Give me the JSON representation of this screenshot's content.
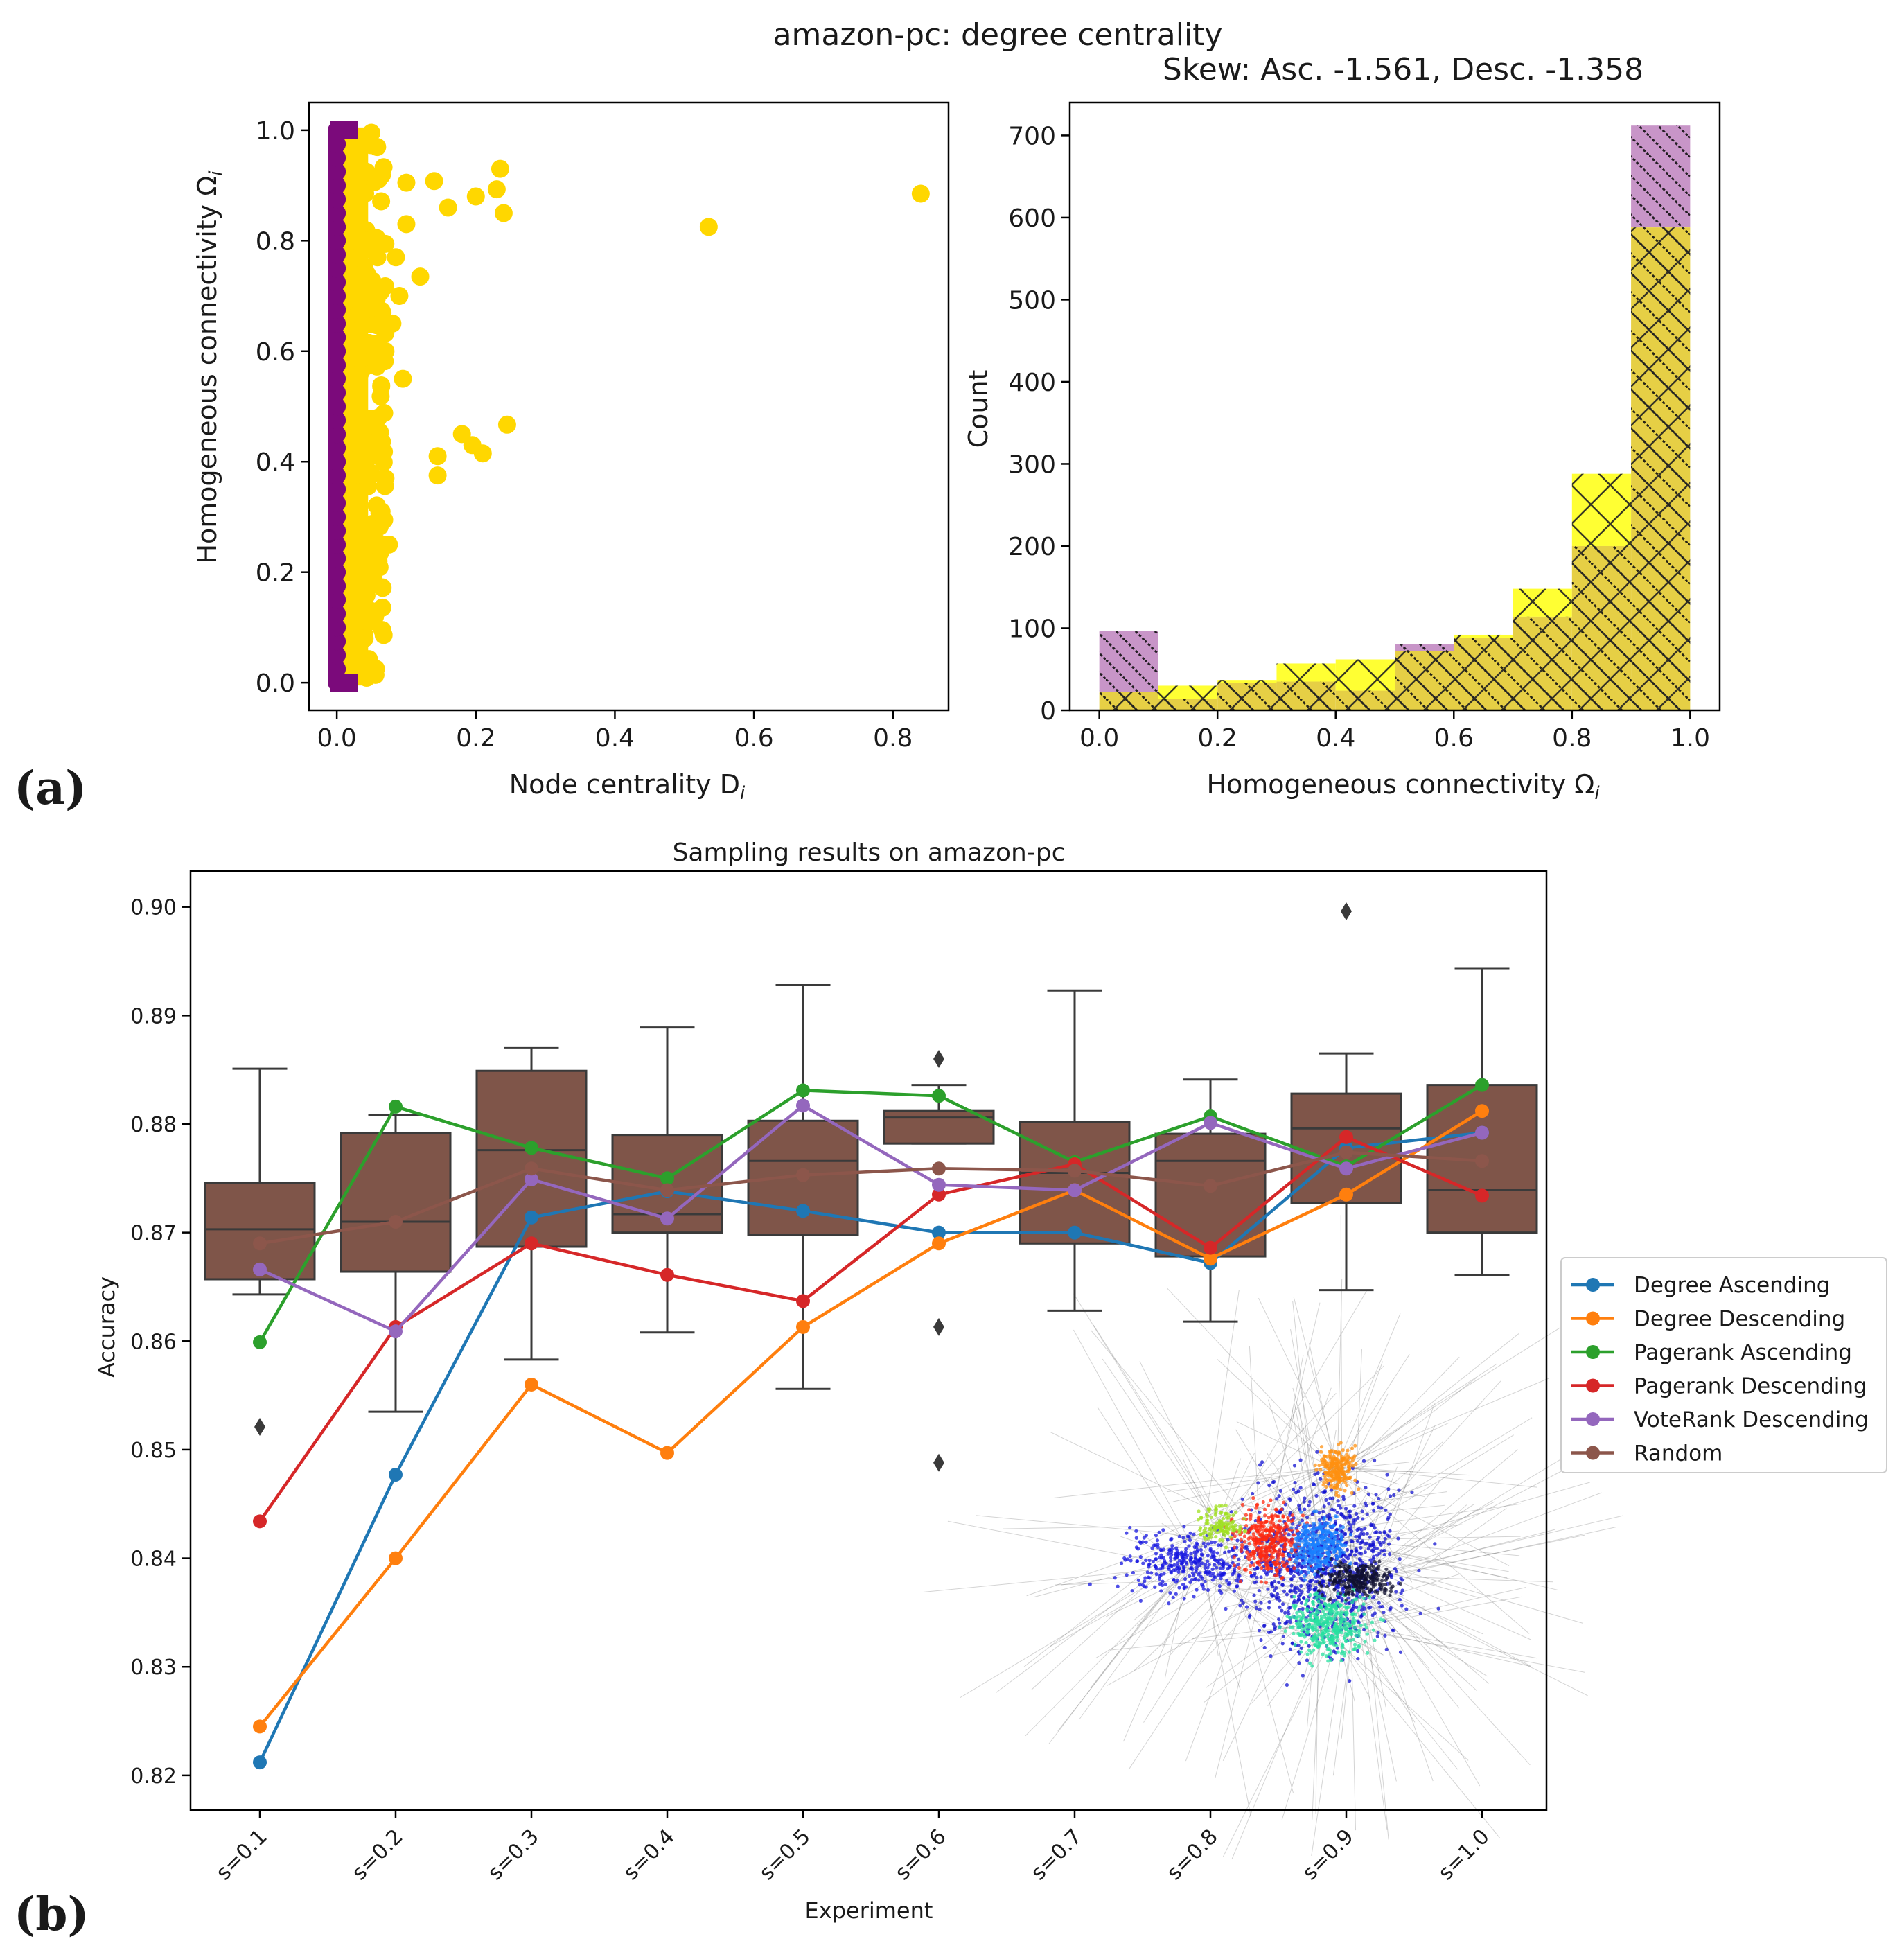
{
  "figure": {
    "panel_a_label": "(a)",
    "panel_b_label": "(b)",
    "suptitle": "amazon-pc: degree centrality"
  },
  "colors": {
    "yellow_scatter": "#ffd700",
    "purple_scatter": "#7b0a7b",
    "hist_yellow": "#ffff33",
    "hist_purple": "#c895c8",
    "hist_overlap": "#e6cf45",
    "box_fill": "#7f5549",
    "degree_asc": "#1f77b4",
    "degree_desc": "#ff7f0e",
    "pagerank_asc": "#2ca02c",
    "pagerank_desc": "#d62728",
    "voterank_desc": "#9467bd",
    "random": "#8c564b"
  },
  "chart_data": [
    {
      "type": "scatter",
      "title": "",
      "xlabel": "Node centrality D",
      "xlabel_sub": "i",
      "ylabel": "Homogeneous connectivity Ω",
      "ylabel_sub": "i",
      "xlim": [
        -0.04,
        0.88
      ],
      "ylim": [
        -0.05,
        1.05
      ],
      "xticks": [
        "0.0",
        "0.2",
        "0.4",
        "0.6",
        "0.8"
      ],
      "yticks": [
        "0.0",
        "0.2",
        "0.4",
        "0.6",
        "0.8",
        "1.0"
      ],
      "series": [
        {
          "name": "Descending",
          "color": "yellow",
          "points": [
            [
              0.84,
              0.885
            ],
            [
              0.535,
              0.825
            ],
            [
              0.245,
              0.467
            ],
            [
              0.24,
              0.85
            ],
            [
              0.235,
              0.93
            ],
            [
              0.23,
              0.893
            ],
            [
              0.21,
              0.415
            ],
            [
              0.2,
              0.88
            ],
            [
              0.195,
              0.43
            ],
            [
              0.18,
              0.45
            ],
            [
              0.16,
              0.86
            ],
            [
              0.145,
              0.41
            ],
            [
              0.145,
              0.375
            ],
            [
              0.14,
              0.908
            ],
            [
              0.12,
              0.735
            ],
            [
              0.1,
              0.905
            ],
            [
              0.1,
              0.83
            ],
            [
              0.095,
              0.55
            ],
            [
              0.09,
              0.7
            ],
            [
              0.085,
              0.77
            ],
            [
              0.08,
              0.65
            ],
            [
              0.075,
              0.25
            ],
            [
              0.07,
              0.6
            ],
            [
              0.07,
              0.37
            ],
            [
              0.06,
              0.48
            ],
            [
              0.06,
              0.22
            ],
            [
              0.055,
              0.12
            ],
            [
              0.05,
              0.18
            ],
            [
              0.045,
              0.03
            ],
            [
              0.04,
              0.08
            ]
          ]
        },
        {
          "name": "Ascending",
          "color": "purple",
          "points": []
        }
      ]
    },
    {
      "type": "bar",
      "title": "Skew: Asc. -1.561, Desc. -1.358",
      "xlabel": "Homogeneous connectivity Ω",
      "xlabel_sub": "i",
      "ylabel": "Count",
      "xlim": [
        -0.05,
        1.05
      ],
      "ylim": [
        0,
        740
      ],
      "xticks": [
        "0.0",
        "0.2",
        "0.4",
        "0.6",
        "0.8",
        "1.0"
      ],
      "yticks": [
        "0",
        "100",
        "200",
        "300",
        "400",
        "500",
        "600",
        "700"
      ],
      "bin_edges": [
        0.0,
        0.1,
        0.2,
        0.3,
        0.4,
        0.5,
        0.6,
        0.7,
        0.8,
        0.9,
        1.0
      ],
      "series": [
        {
          "name": "Descending",
          "values": [
            22,
            30,
            37,
            57,
            62,
            72,
            92,
            148,
            288,
            588
          ]
        },
        {
          "name": "Ascending",
          "values": [
            97,
            14,
            33,
            35,
            24,
            81,
            88,
            114,
            200,
            712
          ]
        }
      ]
    },
    {
      "type": "line",
      "title": "Sampling results on amazon-pc",
      "xlabel": "Experiment",
      "ylabel": "Accuracy",
      "ylim": [
        0.8168,
        0.9033
      ],
      "categories": [
        "s=0.1",
        "s=0.2",
        "s=0.3",
        "s=0.4",
        "s=0.5",
        "s=0.6",
        "s=0.7",
        "s=0.8",
        "s=0.9",
        "s=1.0"
      ],
      "yticks": [
        "0.82",
        "0.83",
        "0.84",
        "0.85",
        "0.86",
        "0.87",
        "0.88",
        "0.89",
        "0.90"
      ],
      "boxes": [
        {
          "q1": 0.8657,
          "median": 0.8703,
          "q3": 0.8746,
          "whislo": 0.8643,
          "whishi": 0.8851,
          "fliers": [
            0.8521
          ]
        },
        {
          "q1": 0.8664,
          "median": 0.871,
          "q3": 0.8792,
          "whislo": 0.8535,
          "whishi": 0.8808,
          "fliers": []
        },
        {
          "q1": 0.8687,
          "median": 0.8776,
          "q3": 0.8849,
          "whislo": 0.8583,
          "whishi": 0.887,
          "fliers": []
        },
        {
          "q1": 0.87,
          "median": 0.8717,
          "q3": 0.879,
          "whislo": 0.8608,
          "whishi": 0.8889,
          "fliers": []
        },
        {
          "q1": 0.8698,
          "median": 0.8766,
          "q3": 0.8803,
          "whislo": 0.8556,
          "whishi": 0.8928,
          "fliers": []
        },
        {
          "q1": 0.8782,
          "median": 0.8806,
          "q3": 0.8812,
          "whislo": 0.8782,
          "whishi": 0.8836,
          "fliers": [
            0.886,
            0.8613,
            0.8488
          ]
        },
        {
          "q1": 0.869,
          "median": 0.8755,
          "q3": 0.8802,
          "whislo": 0.8628,
          "whishi": 0.8923,
          "fliers": []
        },
        {
          "q1": 0.8678,
          "median": 0.8766,
          "q3": 0.8791,
          "whislo": 0.8618,
          "whishi": 0.8841,
          "fliers": []
        },
        {
          "q1": 0.8727,
          "median": 0.8796,
          "q3": 0.8828,
          "whislo": 0.8647,
          "whishi": 0.8865,
          "fliers": [
            0.8996
          ]
        },
        {
          "q1": 0.87,
          "median": 0.8739,
          "q3": 0.8836,
          "whislo": 0.8661,
          "whishi": 0.8943,
          "fliers": []
        }
      ],
      "series": [
        {
          "name": "Degree Ascending",
          "color": "degree_asc",
          "values": [
            0.8212,
            0.8477,
            0.8714,
            0.8738,
            0.872,
            0.87,
            0.87,
            0.8672,
            0.8778,
            0.8792
          ]
        },
        {
          "name": "Degree Descending",
          "color": "degree_desc",
          "values": [
            0.8245,
            0.84,
            0.856,
            0.8497,
            0.8613,
            0.869,
            0.8739,
            0.8676,
            0.8735,
            0.8812
          ]
        },
        {
          "name": "Pagerank Ascending",
          "color": "pagerank_asc",
          "values": [
            0.8599,
            0.8816,
            0.8778,
            0.875,
            0.8831,
            0.8826,
            0.8765,
            0.8807,
            0.8761,
            0.8836
          ]
        },
        {
          "name": "Pagerank Descending",
          "color": "pagerank_desc",
          "values": [
            0.8434,
            0.8613,
            0.869,
            0.8661,
            0.8637,
            0.8735,
            0.8763,
            0.8686,
            0.8788,
            0.8734
          ]
        },
        {
          "name": "VoteRank Descending",
          "color": "voterank_desc",
          "values": [
            0.8666,
            0.8609,
            0.8749,
            0.8713,
            0.8817,
            0.8744,
            0.8739,
            0.8801,
            0.8759,
            0.8792
          ]
        },
        {
          "name": "Random",
          "color": "random",
          "values": [
            0.869,
            0.871,
            0.8759,
            0.8739,
            0.8753,
            0.8759,
            0.8757,
            0.8743,
            0.8774,
            0.8766
          ]
        }
      ],
      "legend_position": "center-right-outside"
    }
  ]
}
